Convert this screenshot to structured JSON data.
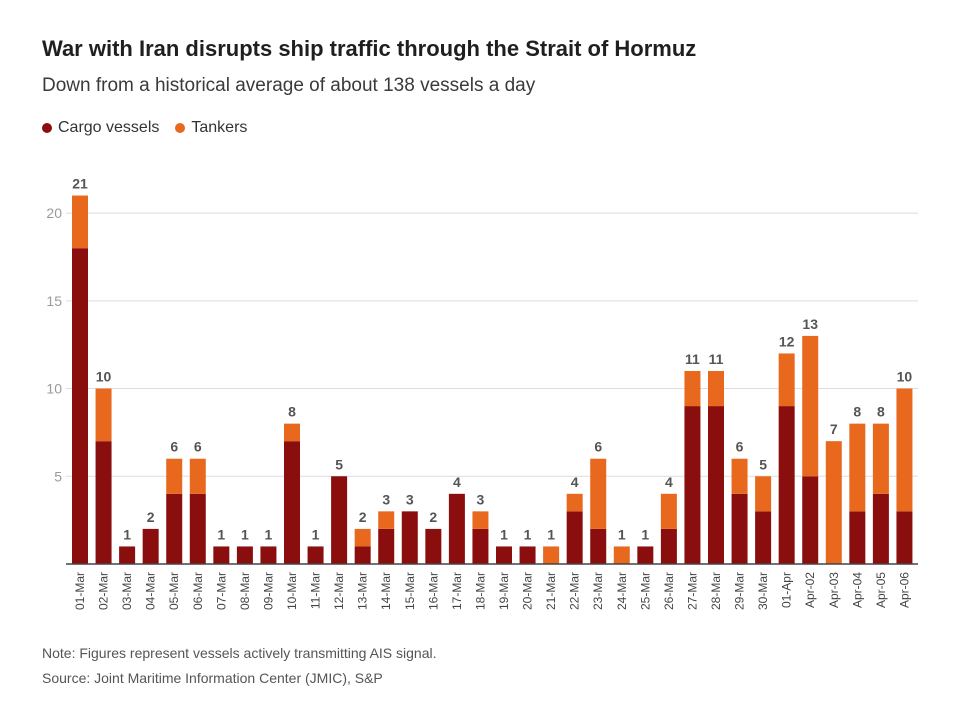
{
  "title": "War with Iran disrupts ship traffic through the Strait of Hormuz",
  "subtitle": "Down from a historical average of about 138 vessels a day",
  "note": "Note: Figures represent vessels actively transmitting AIS signal.",
  "source": "Source: Joint Maritime Information Center (JMIC), S&P",
  "colors": {
    "cargo": "#8b0e0e",
    "tankers": "#e8681e",
    "grid": "#dddddd",
    "axis": "#444444",
    "tick_text": "#9a9a9a",
    "label_text": "#555555"
  },
  "chart_data": {
    "type": "bar",
    "stacked": true,
    "title": "War with Iran disrupts ship traffic through the Strait of Hormuz",
    "subtitle": "Down from a historical average of about 138 vessels a day",
    "legend_position": "top-left",
    "grid": true,
    "ylim": [
      0,
      22
    ],
    "yticks": [
      5,
      10,
      15,
      20
    ],
    "categories": [
      "01-Mar",
      "02-Mar",
      "03-Mar",
      "04-Mar",
      "05-Mar",
      "06-Mar",
      "07-Mar",
      "08-Mar",
      "09-Mar",
      "10-Mar",
      "11-Mar",
      "12-Mar",
      "13-Mar",
      "14-Mar",
      "15-Mar",
      "16-Mar",
      "17-Mar",
      "18-Mar",
      "19-Mar",
      "20-Mar",
      "21-Mar",
      "22-Mar",
      "23-Mar",
      "24-Mar",
      "25-Mar",
      "26-Mar",
      "27-Mar",
      "28-Mar",
      "29-Mar",
      "30-Mar",
      "01-Apr",
      "Apr-02",
      "Apr-03",
      "Apr-04",
      "Apr-05",
      "Apr-06"
    ],
    "series": [
      {
        "name": "Cargo vessels",
        "color": "#8b0e0e",
        "values": [
          18,
          7,
          1,
          2,
          4,
          4,
          1,
          1,
          1,
          7,
          1,
          5,
          1,
          2,
          3,
          2,
          4,
          2,
          1,
          1,
          0,
          3,
          2,
          0,
          1,
          2,
          9,
          9,
          4,
          3,
          9,
          5,
          0,
          3,
          4,
          3
        ]
      },
      {
        "name": "Tankers",
        "color": "#e8681e",
        "values": [
          3,
          3,
          0,
          0,
          2,
          2,
          0,
          0,
          0,
          1,
          0,
          0,
          1,
          1,
          0,
          0,
          0,
          1,
          0,
          0,
          1,
          1,
          4,
          1,
          0,
          2,
          2,
          2,
          2,
          2,
          3,
          8,
          7,
          5,
          4,
          7
        ]
      }
    ],
    "totals": [
      21,
      10,
      1,
      2,
      6,
      6,
      1,
      1,
      1,
      8,
      1,
      5,
      2,
      3,
      3,
      2,
      4,
      3,
      1,
      1,
      1,
      4,
      6,
      1,
      1,
      4,
      11,
      11,
      6,
      5,
      12,
      13,
      7,
      8,
      8,
      10
    ]
  }
}
